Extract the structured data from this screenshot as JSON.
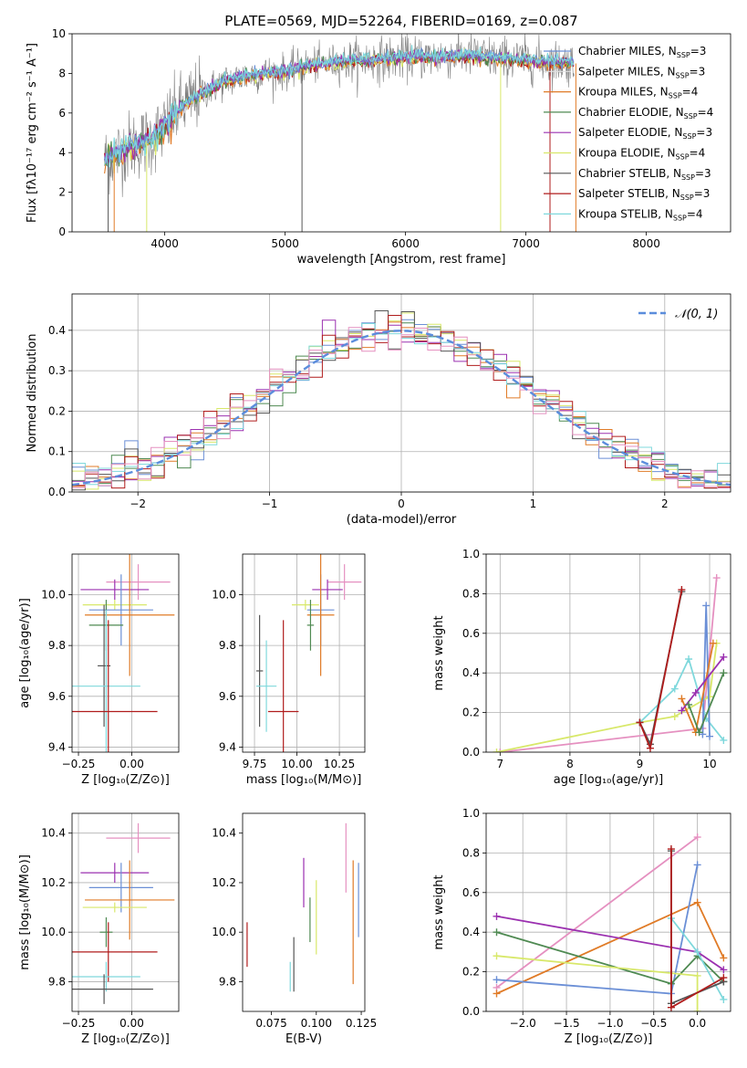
{
  "title": "PLATE=0569, MJD=52264, FIBERID=0169, z=0.087",
  "colors": {
    "Chabrier MILES": "#6b8fd6",
    "Salpeter MILES": "#e0e0e0",
    "Kroupa MILES": "#e07b27",
    "Chabrier ELODIE": "#4f8a52",
    "Salpeter ELODIE": "#9b30b0",
    "Kroupa ELODIE": "#d8e86a",
    "Chabrier STELIB": "#555555",
    "Salpeter STELIB": "#b01c1c",
    "Kroupa STELIB": "#7fd8dc",
    "pink": "#e590c0"
  },
  "chart_data": [
    {
      "type": "line",
      "name": "spectrum",
      "xlabel": "wavelength [Angstrom, rest frame]",
      "ylabel": "Flux [fλ10⁻¹⁷ erg cm⁻² s⁻¹ A⁻¹]",
      "xlim": [
        3230,
        8700
      ],
      "ylim": [
        0,
        10
      ],
      "xticks": [
        4000,
        5000,
        6000,
        7000,
        8000
      ],
      "yticks": [
        0,
        2,
        4,
        6,
        8,
        10
      ],
      "grid": false,
      "legend_position": "right",
      "continuum": [
        [
          3500,
          3.6
        ],
        [
          3700,
          4.3
        ],
        [
          3900,
          4.7
        ],
        [
          4000,
          5.3
        ],
        [
          4100,
          6.1
        ],
        [
          4300,
          7.0
        ],
        [
          4500,
          7.6
        ],
        [
          4700,
          7.9
        ],
        [
          5000,
          8.1
        ],
        [
          5200,
          8.4
        ],
        [
          5500,
          8.6
        ],
        [
          6000,
          8.8
        ],
        [
          6500,
          8.9
        ],
        [
          6800,
          8.75
        ],
        [
          7200,
          8.6
        ],
        [
          7400,
          8.5
        ]
      ],
      "series": [
        {
          "name": "Chabrier MILES, N",
          "sub": "SSP",
          "tail": "=3"
        },
        {
          "name": "Salpeter MILES, N",
          "sub": "SSP",
          "tail": "=3"
        },
        {
          "name": "Kroupa MILES, N",
          "sub": "SSP",
          "tail": "=4"
        },
        {
          "name": "Chabrier ELODIE, N",
          "sub": "SSP",
          "tail": "=4"
        },
        {
          "name": "Salpeter ELODIE, N",
          "sub": "SSP",
          "tail": "=3"
        },
        {
          "name": "Kroupa ELODIE, N",
          "sub": "SSP",
          "tail": "=4"
        },
        {
          "name": "Chabrier STELIB, N",
          "sub": "SSP",
          "tail": "=3"
        },
        {
          "name": "Salpeter STELIB, N",
          "sub": "SSP",
          "tail": "=3"
        },
        {
          "name": "Kroupa STELIB, N",
          "sub": "SSP",
          "tail": "=4"
        }
      ]
    },
    {
      "type": "step",
      "name": "residual-distribution",
      "xlabel": "(data-model)/error",
      "ylabel": "Normed distribution",
      "xlim": [
        -2.5,
        2.5
      ],
      "ylim": [
        0,
        0.49
      ],
      "xticks": [
        -2,
        -1,
        0,
        1,
        2
      ],
      "yticks": [
        0.0,
        0.1,
        0.2,
        0.3,
        0.4
      ],
      "grid": true,
      "legend_label": "𝒩(0, 1)",
      "legend_position": "top-right"
    },
    {
      "type": "errorbar",
      "name": "age-vs-metallicity",
      "xlabel": "Z [log₁₀(Z/Z⊙)]",
      "ylabel": "age  [log₁₀(age/yr)]",
      "xlim": [
        -0.28,
        0.22
      ],
      "ylim": [
        9.38,
        10.16
      ],
      "xticks": [
        -0.25,
        0.0
      ],
      "yticks": [
        9.4,
        9.6,
        9.8,
        10.0
      ],
      "grid": true,
      "points": [
        {
          "c": "pink",
          "x": 0.03,
          "xe": 0.15,
          "y": 10.05,
          "ye": 0.07
        },
        {
          "c": "Salpeter ELODIE",
          "x": -0.08,
          "xe": 0.16,
          "y": 10.02,
          "ye": 0.04
        },
        {
          "c": "Kroupa ELODIE",
          "x": -0.08,
          "xe": 0.15,
          "y": 9.96,
          "ye": 0.02
        },
        {
          "c": "Chabrier MILES",
          "x": -0.05,
          "xe": 0.15,
          "y": 9.94,
          "ye": 0.14
        },
        {
          "c": "Kroupa MILES",
          "x": -0.01,
          "xe": 0.21,
          "y": 9.92,
          "ye": 0.24
        },
        {
          "c": "Chabrier ELODIE",
          "x": -0.12,
          "xe": 0.08,
          "y": 9.88,
          "ye": 0.1
        },
        {
          "c": "Chabrier STELIB",
          "x": -0.13,
          "xe": 0.03,
          "y": 9.72,
          "ye": 0.24
        },
        {
          "c": "Kroupa STELIB",
          "x": -0.12,
          "xe": 0.16,
          "y": 9.64,
          "ye": 0.3
        },
        {
          "c": "Salpeter STELIB",
          "x": -0.11,
          "xe": 0.23,
          "y": 9.54,
          "ye": 0.36
        }
      ]
    },
    {
      "type": "errorbar",
      "name": "age-vs-mass",
      "xlabel": "mass [log₁₀(M/M⊙)]",
      "ylabel": "",
      "xlim": [
        9.68,
        10.4
      ],
      "ylim": [
        9.38,
        10.16
      ],
      "xticks": [
        9.75,
        10.0,
        10.25
      ],
      "yticks": [
        9.4,
        9.6,
        9.8,
        10.0
      ],
      "grid": true,
      "points": [
        {
          "c": "pink",
          "x": 10.28,
          "xe": 0.1,
          "y": 10.05,
          "ye": 0.07
        },
        {
          "c": "Salpeter ELODIE",
          "x": 10.18,
          "xe": 0.09,
          "y": 10.02,
          "ye": 0.04
        },
        {
          "c": "Kroupa ELODIE",
          "x": 10.05,
          "xe": 0.08,
          "y": 9.96,
          "ye": 0.02
        },
        {
          "c": "Chabrier MILES",
          "x": 10.14,
          "xe": 0.08,
          "y": 9.94,
          "ye": 0.14
        },
        {
          "c": "Kroupa MILES",
          "x": 10.14,
          "xe": 0.08,
          "y": 9.92,
          "ye": 0.24
        },
        {
          "c": "Chabrier ELODIE",
          "x": 10.08,
          "xe": 0.02,
          "y": 9.88,
          "ye": 0.1
        },
        {
          "c": "Chabrier STELIB",
          "x": 9.78,
          "xe": 0.02,
          "y": 9.7,
          "ye": 0.22
        },
        {
          "c": "Kroupa STELIB",
          "x": 9.82,
          "xe": 0.06,
          "y": 9.64,
          "ye": 0.18
        },
        {
          "c": "Salpeter STELIB",
          "x": 9.92,
          "xe": 0.09,
          "y": 9.54,
          "ye": 0.36
        }
      ]
    },
    {
      "type": "line",
      "name": "mass-weight-vs-age",
      "xlabel": "age  [log₁₀(age/yr)]",
      "ylabel": "mass weight",
      "xlim": [
        6.8,
        10.3
      ],
      "ylim": [
        0,
        1.0
      ],
      "xticks": [
        7,
        8,
        9,
        10
      ],
      "yticks": [
        0.0,
        0.2,
        0.4,
        0.6,
        0.8,
        1.0
      ],
      "grid": true,
      "series": [
        {
          "c": "pink",
          "pts": [
            [
              7.0,
              0.0
            ],
            [
              9.9,
              0.12
            ],
            [
              10.1,
              0.88
            ]
          ]
        },
        {
          "c": "Kroupa ELODIE",
          "pts": [
            [
              6.95,
              0.0
            ],
            [
              9.0,
              0.15
            ],
            [
              9.5,
              0.18
            ],
            [
              10.0,
              0.28
            ],
            [
              10.1,
              0.55
            ]
          ]
        },
        {
          "c": "Kroupa STELIB",
          "pts": [
            [
              9.0,
              0.15
            ],
            [
              9.5,
              0.32
            ],
            [
              9.7,
              0.47
            ],
            [
              9.95,
              0.17
            ],
            [
              10.2,
              0.06
            ]
          ]
        },
        {
          "c": "Chabrier MILES",
          "pts": [
            [
              9.9,
              0.09
            ],
            [
              9.95,
              0.74
            ],
            [
              10.0,
              0.08
            ]
          ]
        },
        {
          "c": "Kroupa MILES",
          "pts": [
            [
              9.6,
              0.27
            ],
            [
              9.8,
              0.1
            ],
            [
              10.05,
              0.55
            ]
          ]
        },
        {
          "c": "Salpeter ELODIE",
          "pts": [
            [
              9.6,
              0.21
            ],
            [
              9.8,
              0.3
            ],
            [
              10.2,
              0.48
            ]
          ]
        },
        {
          "c": "Chabrier ELODIE",
          "pts": [
            [
              9.7,
              0.24
            ],
            [
              9.85,
              0.1
            ],
            [
              10.2,
              0.4
            ]
          ]
        },
        {
          "c": "Chabrier STELIB",
          "pts": [
            [
              9.0,
              0.15
            ],
            [
              9.15,
              0.04
            ],
            [
              9.6,
              0.81
            ]
          ]
        },
        {
          "c": "Salpeter STELIB",
          "pts": [
            [
              9.0,
              0.15
            ],
            [
              9.15,
              0.02
            ],
            [
              9.6,
              0.82
            ]
          ]
        }
      ]
    },
    {
      "type": "errorbar",
      "name": "mass-vs-metallicity",
      "xlabel": "Z [log₁₀(Z/Z⊙)]",
      "ylabel": "mass [log₁₀(M/M⊙)]",
      "xlim": [
        -0.28,
        0.22
      ],
      "ylim": [
        9.68,
        10.48
      ],
      "xticks": [
        -0.25,
        0.0
      ],
      "yticks": [
        9.8,
        10.0,
        10.2,
        10.4
      ],
      "grid": true,
      "points": [
        {
          "c": "pink",
          "x": 0.03,
          "xe": 0.15,
          "y": 10.38,
          "ye": 0.06
        },
        {
          "c": "Salpeter ELODIE",
          "x": -0.08,
          "xe": 0.16,
          "y": 10.24,
          "ye": 0.04
        },
        {
          "c": "Chabrier MILES",
          "x": -0.05,
          "xe": 0.15,
          "y": 10.18,
          "ye": 0.1
        },
        {
          "c": "Kroupa MILES",
          "x": -0.01,
          "xe": 0.21,
          "y": 10.13,
          "ye": 0.16
        },
        {
          "c": "Kroupa ELODIE",
          "x": -0.08,
          "xe": 0.15,
          "y": 10.1,
          "ye": 0.02
        },
        {
          "c": "Chabrier ELODIE",
          "x": -0.12,
          "xe": 0.03,
          "y": 10.0,
          "ye": 0.06
        },
        {
          "c": "Salpeter STELIB",
          "x": -0.11,
          "xe": 0.23,
          "y": 9.92,
          "ye": 0.12
        },
        {
          "c": "Kroupa STELIB",
          "x": -0.12,
          "xe": 0.16,
          "y": 9.82,
          "ye": 0.06
        },
        {
          "c": "Chabrier STELIB",
          "x": -0.13,
          "xe": 0.23,
          "y": 9.77,
          "ye": 0.06
        }
      ]
    },
    {
      "type": "errorbar",
      "name": "mass-vs-extinction",
      "xlabel": "E(B-V)",
      "ylabel": "",
      "xlim": [
        0.059,
        0.127
      ],
      "ylim": [
        9.68,
        10.48
      ],
      "xticks": [
        0.075,
        0.1,
        0.125
      ],
      "yticks": [
        9.8,
        10.0,
        10.2,
        10.4
      ],
      "grid": false,
      "points": [
        {
          "c": "Salpeter STELIB",
          "x": 0.0615,
          "y": 9.95,
          "ye": 0.09
        },
        {
          "c": "Kroupa STELIB",
          "x": 0.0855,
          "y": 9.82,
          "ye": 0.06
        },
        {
          "c": "Chabrier STELIB",
          "x": 0.0875,
          "y": 9.87,
          "ye": 0.11
        },
        {
          "c": "Salpeter ELODIE",
          "x": 0.093,
          "y": 10.2,
          "ye": 0.1
        },
        {
          "c": "Chabrier ELODIE",
          "x": 0.0965,
          "y": 10.05,
          "ye": 0.09
        },
        {
          "c": "Kroupa ELODIE",
          "x": 0.1,
          "y": 10.06,
          "ye": 0.15
        },
        {
          "c": "pink",
          "x": 0.1165,
          "y": 10.3,
          "ye": 0.14
        },
        {
          "c": "Kroupa MILES",
          "x": 0.1205,
          "y": 10.04,
          "ye": 0.25
        },
        {
          "c": "Chabrier MILES",
          "x": 0.1235,
          "y": 10.13,
          "ye": 0.15
        }
      ]
    },
    {
      "type": "line",
      "name": "mass-weight-vs-metallicity",
      "xlabel": "Z [log₁₀(Z/Z⊙)]",
      "ylabel": "mass weight",
      "xlim": [
        -2.42,
        0.38
      ],
      "ylim": [
        0,
        1.0
      ],
      "xticks": [
        -2.0,
        -1.5,
        -1.0,
        -0.5,
        0.0
      ],
      "yticks": [
        0.0,
        0.2,
        0.4,
        0.6,
        0.8,
        1.0
      ],
      "grid": true,
      "series": [
        {
          "c": "pink",
          "pts": [
            [
              -2.3,
              0.12
            ],
            [
              0.0,
              0.88
            ]
          ]
        },
        {
          "c": "Kroupa MILES",
          "pts": [
            [
              -2.3,
              0.09
            ],
            [
              0.0,
              0.55
            ],
            [
              0.3,
              0.27
            ]
          ]
        },
        {
          "c": "Chabrier MILES",
          "pts": [
            [
              -2.3,
              0.16
            ],
            [
              -0.3,
              0.09
            ],
            [
              0.0,
              0.74
            ]
          ]
        },
        {
          "c": "Salpeter ELODIE",
          "pts": [
            [
              -2.3,
              0.48
            ],
            [
              0.0,
              0.3
            ],
            [
              0.3,
              0.21
            ]
          ]
        },
        {
          "c": "Chabrier ELODIE",
          "pts": [
            [
              -2.3,
              0.4
            ],
            [
              -0.3,
              0.14
            ],
            [
              0.0,
              0.28
            ],
            [
              0.3,
              0.15
            ]
          ]
        },
        {
          "c": "Kroupa ELODIE",
          "pts": [
            [
              -2.3,
              0.28
            ],
            [
              0.0,
              0.18
            ],
            [
              0.0,
              0.0
            ]
          ]
        },
        {
          "c": "Kroupa STELIB",
          "pts": [
            [
              -0.3,
              0.47
            ],
            [
              0.0,
              0.3
            ],
            [
              0.3,
              0.06
            ]
          ]
        },
        {
          "c": "Chabrier STELIB",
          "pts": [
            [
              -0.3,
              0.81
            ],
            [
              -0.3,
              0.04
            ],
            [
              0.3,
              0.15
            ]
          ]
        },
        {
          "c": "Salpeter STELIB",
          "pts": [
            [
              -0.3,
              0.82
            ],
            [
              -0.3,
              0.02
            ],
            [
              0.3,
              0.17
            ]
          ]
        }
      ]
    }
  ]
}
